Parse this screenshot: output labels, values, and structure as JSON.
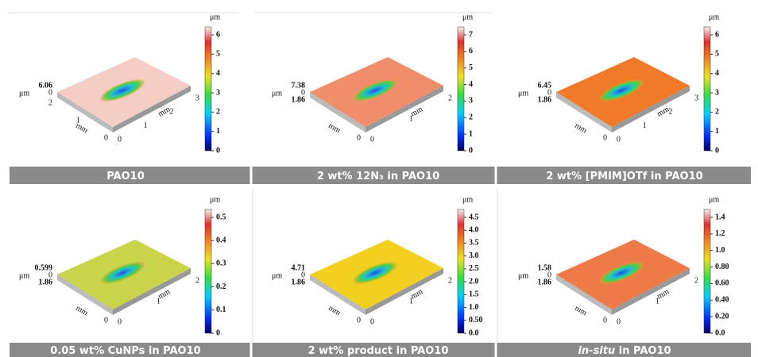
{
  "panels": [
    {
      "caption": "PAO10",
      "unit": "μm",
      "z_label": "6.06",
      "y_end": null,
      "colorbar_ticks": [
        "0",
        "1",
        "2",
        "3",
        "4",
        "5",
        "6"
      ],
      "front_ticks": [
        "0",
        "1",
        "2",
        "3"
      ],
      "left_ticks": [
        "0",
        "1",
        "2"
      ],
      "axis_unit": "mm"
    },
    {
      "caption": "2 wt% 12N₃ in PAO10",
      "unit": "μm",
      "z_label": "7.38",
      "y_end": "1.86",
      "colorbar_ticks": [
        "0",
        "1",
        "2",
        "3",
        "4",
        "5",
        "6",
        "7"
      ],
      "front_ticks": [
        "0",
        "1",
        "2"
      ],
      "left_ticks": [
        "0"
      ],
      "axis_unit": "mm"
    },
    {
      "caption": "2 wt% [PMIM]OTf in PAO10",
      "unit": "μm",
      "z_label": "6.45",
      "y_end": "1.86",
      "colorbar_ticks": [
        "0",
        "1",
        "2",
        "3",
        "4",
        "5",
        "6"
      ],
      "front_ticks": [
        "0",
        "1",
        "2",
        "3"
      ],
      "left_ticks": [
        "0"
      ],
      "axis_unit": "mm"
    },
    {
      "caption": "0.05 wt% CuNPs in PAO10",
      "unit": "μm",
      "z_label": "0.599",
      "y_end": "1.86",
      "colorbar_ticks": [
        "0",
        "0.1",
        "0.2",
        "0.3",
        "0.4",
        "0.5"
      ],
      "front_ticks": [
        "0",
        "1",
        "2"
      ],
      "left_ticks": [
        "0"
      ],
      "axis_unit": "mm"
    },
    {
      "caption": "2 wt% product in PAO10",
      "unit": "μm",
      "z_label": "4.71",
      "y_end": "1.86",
      "colorbar_ticks": [
        "0.0",
        "0.50",
        "1.0",
        "1.5",
        "2.0",
        "2.5",
        "3.0",
        "3.5",
        "4.0",
        "4.5"
      ],
      "front_ticks": [
        "0",
        "1",
        "2"
      ],
      "left_ticks": [
        "0"
      ],
      "axis_unit": "mm"
    },
    {
      "caption_italic": "in-situ",
      "caption": " in PAO10",
      "unit": "μm",
      "z_label": "1.58",
      "y_end": "1.86",
      "colorbar_ticks": [
        "0.0",
        "0.20",
        "0.40",
        "0.60",
        "0.80",
        "1.0",
        "1.2",
        "1.4"
      ],
      "front_ticks": [
        "0",
        "1",
        "2"
      ],
      "left_ticks": [
        "0"
      ],
      "axis_unit": "mm"
    }
  ]
}
